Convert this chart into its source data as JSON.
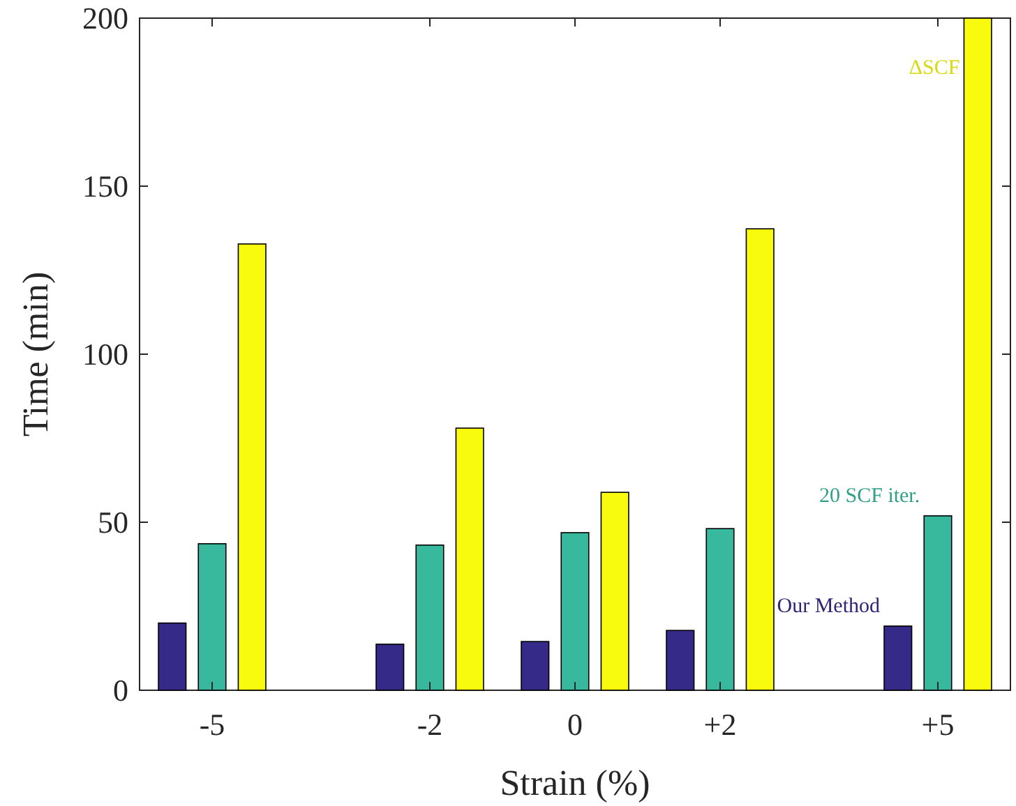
{
  "chart_data": {
    "type": "bar",
    "xlabel": "Strain (%)",
    "ylabel": "Time (min)",
    "x": [
      -5,
      -2,
      0,
      2,
      5
    ],
    "xlim": [
      -6,
      6
    ],
    "xticks": [
      -5,
      -2,
      0,
      {
        "value": 2,
        "label": "+2"
      },
      {
        "value": 5,
        "label": "+5"
      }
    ],
    "ylim": [
      0,
      200
    ],
    "yticks": [
      0,
      50,
      100,
      150,
      200
    ],
    "grid": false,
    "series": [
      {
        "name": "Our Method",
        "color": "#352a87",
        "values": [
          20,
          13.7,
          14.5,
          17.8,
          19.1
        ]
      },
      {
        "name": "20 SCF iter.",
        "color": "#38b99e",
        "values": [
          43.6,
          43.2,
          46.9,
          48.1,
          51.9
        ]
      },
      {
        "name": "ΔSCF",
        "color": "#f9fb0e",
        "values": [
          132.8,
          78,
          58.9,
          137.3,
          200
        ]
      }
    ]
  }
}
